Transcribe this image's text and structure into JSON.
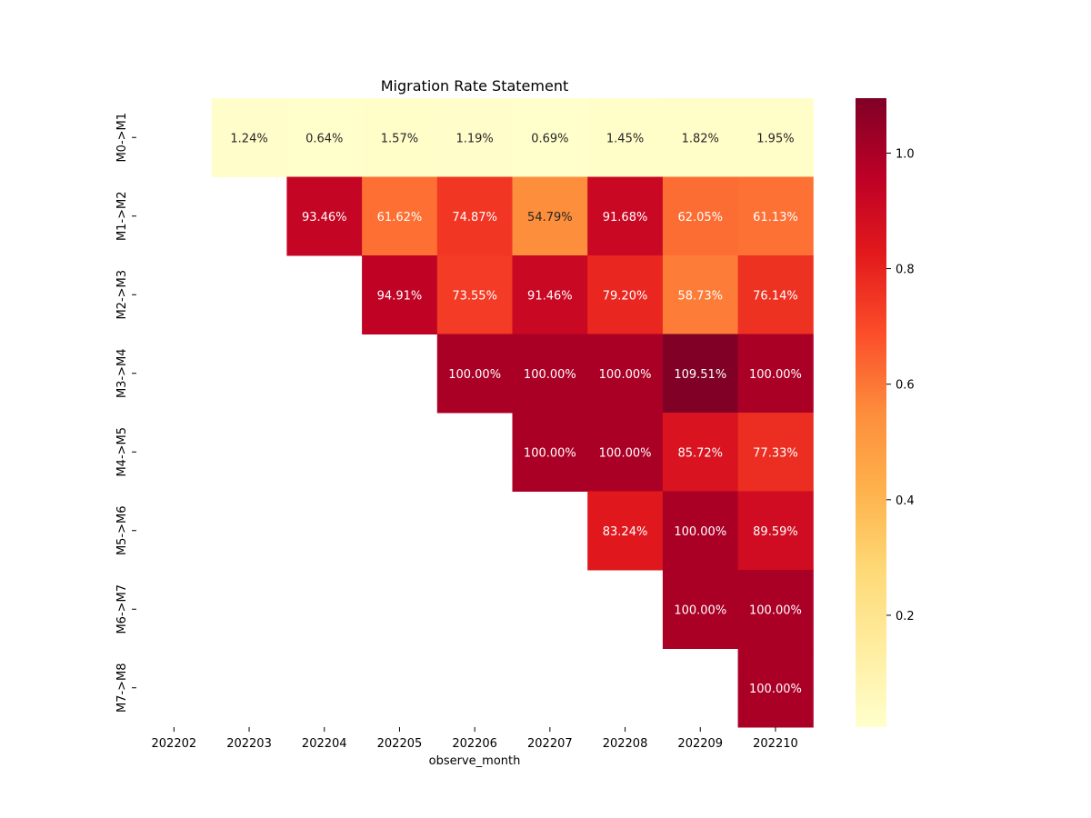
{
  "chart_data": {
    "type": "heatmap",
    "title": "Migration Rate Statement",
    "xlabel": "observe_month",
    "ylabel": "",
    "x_categories": [
      "202202",
      "202203",
      "202204",
      "202205",
      "202206",
      "202207",
      "202208",
      "202209",
      "202210"
    ],
    "y_categories": [
      "M0->M1",
      "M1->M2",
      "M2->M3",
      "M3->M4",
      "M4->M5",
      "M5->M6",
      "M6->M7",
      "M7->M8"
    ],
    "values": [
      [
        null,
        0.0124,
        0.0064,
        0.0157,
        0.0119,
        0.0069,
        0.0145,
        0.0182,
        0.0195
      ],
      [
        null,
        null,
        0.9346,
        0.6162,
        0.7487,
        0.5479,
        0.9168,
        0.6205,
        0.6113
      ],
      [
        null,
        null,
        null,
        0.9491,
        0.7355,
        0.9146,
        0.792,
        0.5873,
        0.7614
      ],
      [
        null,
        null,
        null,
        null,
        1.0,
        1.0,
        1.0,
        1.0951,
        1.0
      ],
      [
        null,
        null,
        null,
        null,
        null,
        1.0,
        1.0,
        0.8572,
        0.7733
      ],
      [
        null,
        null,
        null,
        null,
        null,
        null,
        0.8324,
        1.0,
        0.8959
      ],
      [
        null,
        null,
        null,
        null,
        null,
        null,
        null,
        1.0,
        1.0
      ],
      [
        null,
        null,
        null,
        null,
        null,
        null,
        null,
        null,
        1.0
      ]
    ],
    "annotations": [
      [
        null,
        "1.24%",
        "0.64%",
        "1.57%",
        "1.19%",
        "0.69%",
        "1.45%",
        "1.82%",
        "1.95%"
      ],
      [
        null,
        null,
        "93.46%",
        "61.62%",
        "74.87%",
        "54.79%",
        "91.68%",
        "62.05%",
        "61.13%"
      ],
      [
        null,
        null,
        null,
        "94.91%",
        "73.55%",
        "91.46%",
        "79.20%",
        "58.73%",
        "76.14%"
      ],
      [
        null,
        null,
        null,
        null,
        "100.00%",
        "100.00%",
        "100.00%",
        "109.51%",
        "100.00%"
      ],
      [
        null,
        null,
        null,
        null,
        null,
        "100.00%",
        "100.00%",
        "85.72%",
        "77.33%"
      ],
      [
        null,
        null,
        null,
        null,
        null,
        null,
        "83.24%",
        "100.00%",
        "89.59%"
      ],
      [
        null,
        null,
        null,
        null,
        null,
        null,
        null,
        "100.00%",
        "100.00%"
      ],
      [
        null,
        null,
        null,
        null,
        null,
        null,
        null,
        null,
        "100.00%"
      ]
    ],
    "colormap": "YlOrRd",
    "vmin": 0.0064,
    "vmax": 1.0951,
    "colorbar_ticks": [
      "0.2",
      "0.4",
      "0.6",
      "0.8",
      "1.0"
    ],
    "colorbar_tick_values": [
      0.2,
      0.4,
      0.6,
      0.8,
      1.0
    ],
    "colors": {
      "text_dark": "#262626",
      "text_light": "#ffffff",
      "axis": "#000000"
    }
  }
}
